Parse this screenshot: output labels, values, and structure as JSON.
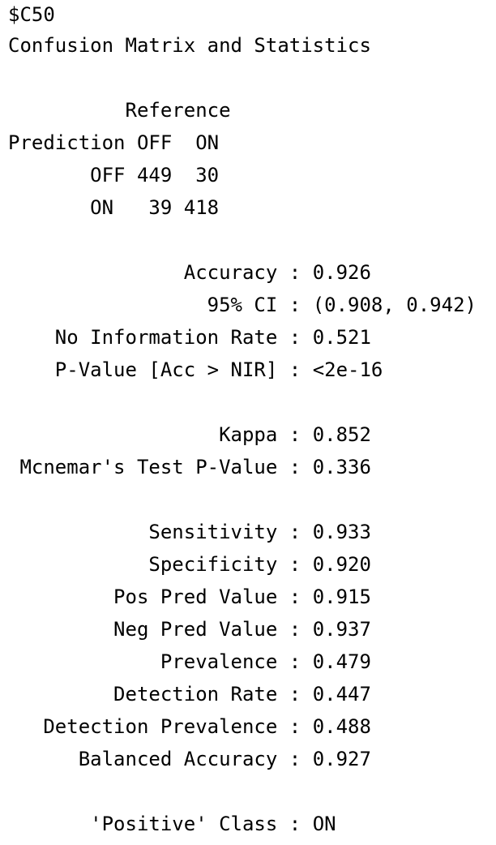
{
  "header": {
    "list_name": "$C50",
    "title": "Confusion Matrix and Statistics"
  },
  "matrix": {
    "reference_label": "          Reference",
    "header_row": "Prediction OFF  ON",
    "rows": [
      "       OFF 449  30",
      "       ON   39 418"
    ]
  },
  "overall": [
    {
      "label": "               Accuracy : ",
      "value": "0.926"
    },
    {
      "label": "                 95% CI : ",
      "value": "(0.908, 0.942)"
    },
    {
      "label": "    No Information Rate : ",
      "value": "0.521"
    },
    {
      "label": "    P-Value [Acc > NIR] : ",
      "value": "<2e-16"
    }
  ],
  "agreement": [
    {
      "label": "                  Kappa : ",
      "value": "0.852"
    },
    {
      "label": " Mcnemar's Test P-Value : ",
      "value": "0.336"
    }
  ],
  "class_stats": [
    {
      "label": "            Sensitivity : ",
      "value": "0.933"
    },
    {
      "label": "            Specificity : ",
      "value": "0.920"
    },
    {
      "label": "         Pos Pred Value : ",
      "value": "0.915"
    },
    {
      "label": "         Neg Pred Value : ",
      "value": "0.937"
    },
    {
      "label": "             Prevalence : ",
      "value": "0.479"
    },
    {
      "label": "         Detection Rate : ",
      "value": "0.447"
    },
    {
      "label": "   Detection Prevalence : ",
      "value": "0.488"
    },
    {
      "label": "      Balanced Accuracy : ",
      "value": "0.927"
    }
  ],
  "positive_class": {
    "label": "       'Positive' Class : ",
    "value": "ON"
  }
}
